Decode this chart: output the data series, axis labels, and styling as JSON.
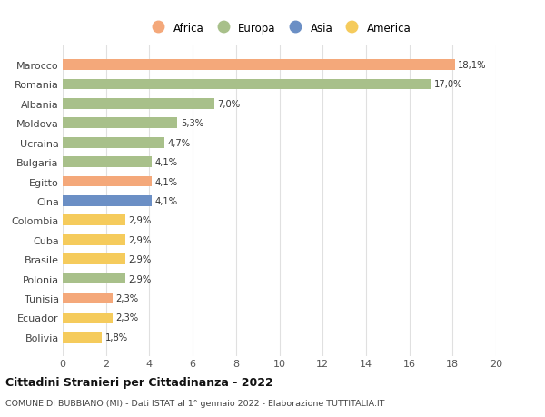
{
  "countries": [
    "Marocco",
    "Romania",
    "Albania",
    "Moldova",
    "Ucraina",
    "Bulgaria",
    "Egitto",
    "Cina",
    "Colombia",
    "Cuba",
    "Brasile",
    "Polonia",
    "Tunisia",
    "Ecuador",
    "Bolivia"
  ],
  "values": [
    18.1,
    17.0,
    7.0,
    5.3,
    4.7,
    4.1,
    4.1,
    4.1,
    2.9,
    2.9,
    2.9,
    2.9,
    2.3,
    2.3,
    1.8
  ],
  "labels": [
    "18,1%",
    "17,0%",
    "7,0%",
    "5,3%",
    "4,7%",
    "4,1%",
    "4,1%",
    "4,1%",
    "2,9%",
    "2,9%",
    "2,9%",
    "2,9%",
    "2,3%",
    "2,3%",
    "1,8%"
  ],
  "continents": [
    "Africa",
    "Europa",
    "Europa",
    "Europa",
    "Europa",
    "Europa",
    "Africa",
    "Asia",
    "America",
    "America",
    "America",
    "Europa",
    "Africa",
    "America",
    "America"
  ],
  "colors": {
    "Africa": "#F4A87A",
    "Europa": "#A8C08A",
    "Asia": "#6B8FC5",
    "America": "#F5CB5C"
  },
  "title_main": "Cittadini Stranieri per Cittadinanza - 2022",
  "title_sub": "COMUNE DI BUBBIANO (MI) - Dati ISTAT al 1° gennaio 2022 - Elaborazione TUTTITALIA.IT",
  "xlim": [
    0,
    20
  ],
  "xticks": [
    0,
    2,
    4,
    6,
    8,
    10,
    12,
    14,
    16,
    18,
    20
  ],
  "background_color": "#ffffff",
  "grid_color": "#e0e0e0",
  "legend_order": [
    "Africa",
    "Europa",
    "Asia",
    "America"
  ]
}
